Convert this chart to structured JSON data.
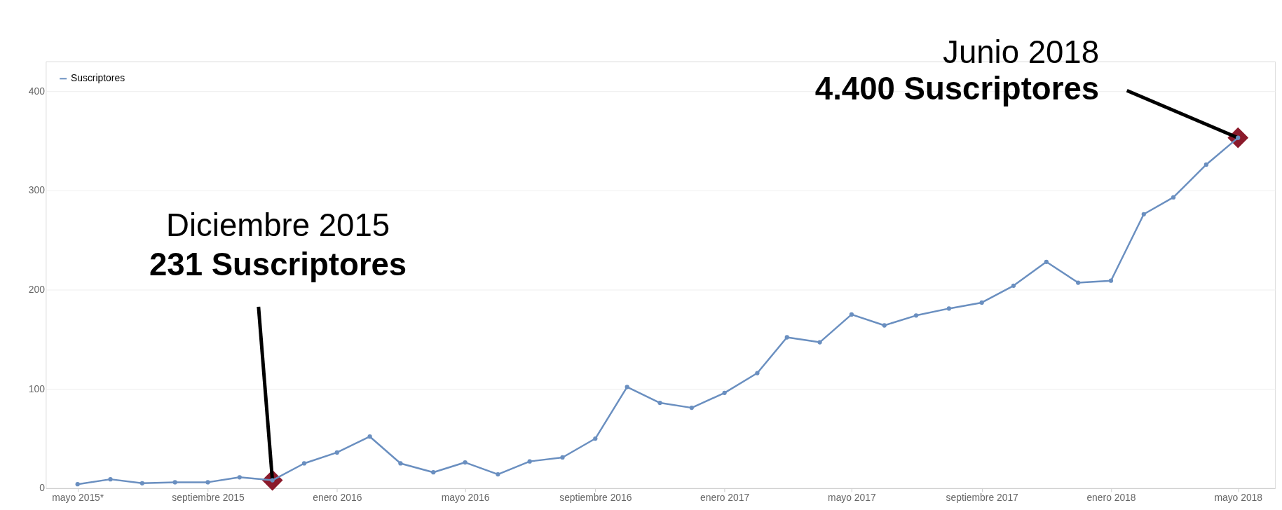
{
  "chart_data": {
    "type": "line",
    "x": [
      "2015-05",
      "2015-06",
      "2015-07",
      "2015-08",
      "2015-09",
      "2015-10",
      "2015-11",
      "2015-12",
      "2016-01",
      "2016-02",
      "2016-03",
      "2016-04",
      "2016-05",
      "2016-06",
      "2016-07",
      "2016-08",
      "2016-09",
      "2016-10",
      "2016-11",
      "2016-12",
      "2017-01",
      "2017-02",
      "2017-03",
      "2017-04",
      "2017-05",
      "2017-06",
      "2017-07",
      "2017-08",
      "2017-09",
      "2017-10",
      "2017-11",
      "2017-12",
      "2018-01",
      "2018-02",
      "2018-03",
      "2018-04",
      "2018-05"
    ],
    "series": [
      {
        "name": "Suscriptores",
        "color": "#6a8fc0",
        "values": [
          4,
          9,
          5,
          6,
          6,
          11,
          8,
          25,
          36,
          52,
          25,
          16,
          26,
          14,
          27,
          31,
          50,
          102,
          86,
          81,
          96,
          116,
          152,
          147,
          175,
          164,
          174,
          181,
          187,
          204,
          228,
          207,
          209,
          276,
          293,
          326,
          353
        ]
      }
    ],
    "xlim": [
      "2015-04-01",
      "2018-06-05"
    ],
    "xticks": [
      {
        "value": "2015-05",
        "label": "mayo 2015*"
      },
      {
        "value": "2015-09",
        "label": "septiembre 2015"
      },
      {
        "value": "2016-01",
        "label": "enero 2016"
      },
      {
        "value": "2016-05",
        "label": "mayo 2016"
      },
      {
        "value": "2016-09",
        "label": "septiembre 2016"
      },
      {
        "value": "2017-01",
        "label": "enero 2017"
      },
      {
        "value": "2017-05",
        "label": "mayo 2017"
      },
      {
        "value": "2017-09",
        "label": "septiembre 2017"
      },
      {
        "value": "2018-01",
        "label": "enero 2018"
      },
      {
        "value": "2018-05",
        "label": "mayo 2018"
      }
    ],
    "ylim": [
      0,
      430
    ],
    "yticks": [
      0,
      100,
      200,
      300,
      400
    ],
    "grid": "y",
    "legend": "top left",
    "marker": "circle",
    "line_style": "solid",
    "annotations": [
      "Diciembre 2015",
      {
        "text": "231 Suscriptores",
        "x": "2015-11",
        "y": 8
      },
      "Junio 2018",
      {
        "text": "4.400 Suscriptores",
        "x": "2018-05",
        "y": 353
      }
    ]
  }
}
